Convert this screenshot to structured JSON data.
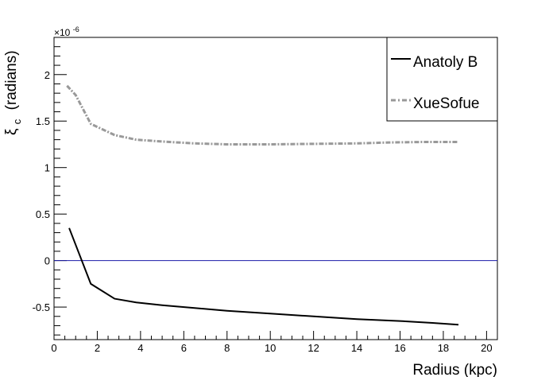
{
  "chart_data": {
    "type": "line",
    "title": "",
    "xlabel": "Radius (kpc)",
    "ylabel": "ξ",
    "ylabel_sub": "c",
    "ylabel_unit": "(radians)",
    "y_exponent": "×10",
    "y_exponent_power": "-6",
    "xlim": [
      0,
      20.5
    ],
    "ylim": [
      -0.85,
      2.4
    ],
    "grid": false,
    "legend_position": "top-right",
    "x_ticks": [
      "0",
      "2",
      "4",
      "6",
      "8",
      "10",
      "12",
      "14",
      "16",
      "18",
      "20"
    ],
    "y_ticks": [
      "-0.5",
      "0",
      "0.5",
      "1",
      "1.5",
      "2"
    ],
    "series": [
      {
        "name": "Anatoly B",
        "color": "#000000",
        "style": "solid",
        "x": [
          0.7,
          1.7,
          2.8,
          3.8,
          5.0,
          6.5,
          8.0,
          10.0,
          12.0,
          14.0,
          16.0,
          17.5,
          18.7
        ],
        "y": [
          0.35,
          -0.25,
          -0.41,
          -0.45,
          -0.48,
          -0.51,
          -0.54,
          -0.57,
          -0.6,
          -0.63,
          -0.65,
          -0.67,
          -0.69
        ]
      },
      {
        "name": "XueSofue",
        "color": "#999999",
        "style": "dash-dot",
        "x": [
          0.6,
          1.0,
          1.7,
          2.8,
          3.8,
          5.0,
          6.5,
          8.0,
          10.0,
          12.0,
          14.0,
          15.5,
          17.0,
          18.7
        ],
        "y": [
          1.88,
          1.78,
          1.47,
          1.35,
          1.3,
          1.28,
          1.26,
          1.25,
          1.25,
          1.255,
          1.26,
          1.27,
          1.275,
          1.275
        ]
      }
    ],
    "reference_line": {
      "y": 0,
      "color": "#1a1aa8"
    }
  }
}
